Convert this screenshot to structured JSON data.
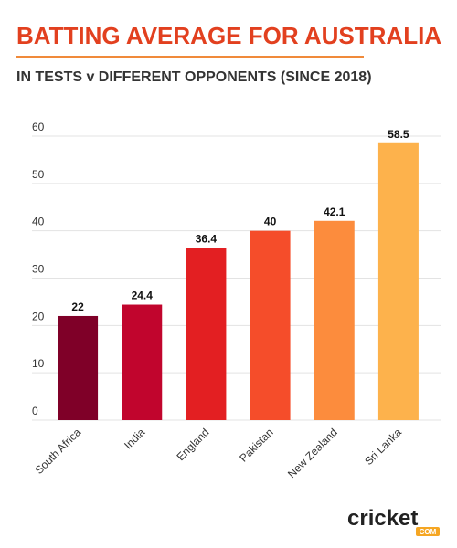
{
  "chart_data": {
    "type": "bar",
    "title": "BATTING AVERAGE FOR AUSTRALIA",
    "subtitle": "IN TESTS v DIFFERENT OPPONENTS (SINCE 2018)",
    "categories": [
      "South Africa",
      "India",
      "England",
      "Pakistan",
      "New Zealand",
      "Sri Lanka"
    ],
    "values": [
      22,
      24.4,
      36.4,
      40,
      42.1,
      58.5
    ],
    "colors": [
      "#7f0028",
      "#c1052d",
      "#e31f22",
      "#f54d2a",
      "#fc8c3d",
      "#fdb24c"
    ],
    "ylim": [
      0,
      60
    ],
    "yticks": [
      0,
      10,
      20,
      30,
      40,
      50,
      60
    ],
    "grid": true,
    "logo": {
      "name": "cricket",
      "suffix": "COM"
    }
  }
}
